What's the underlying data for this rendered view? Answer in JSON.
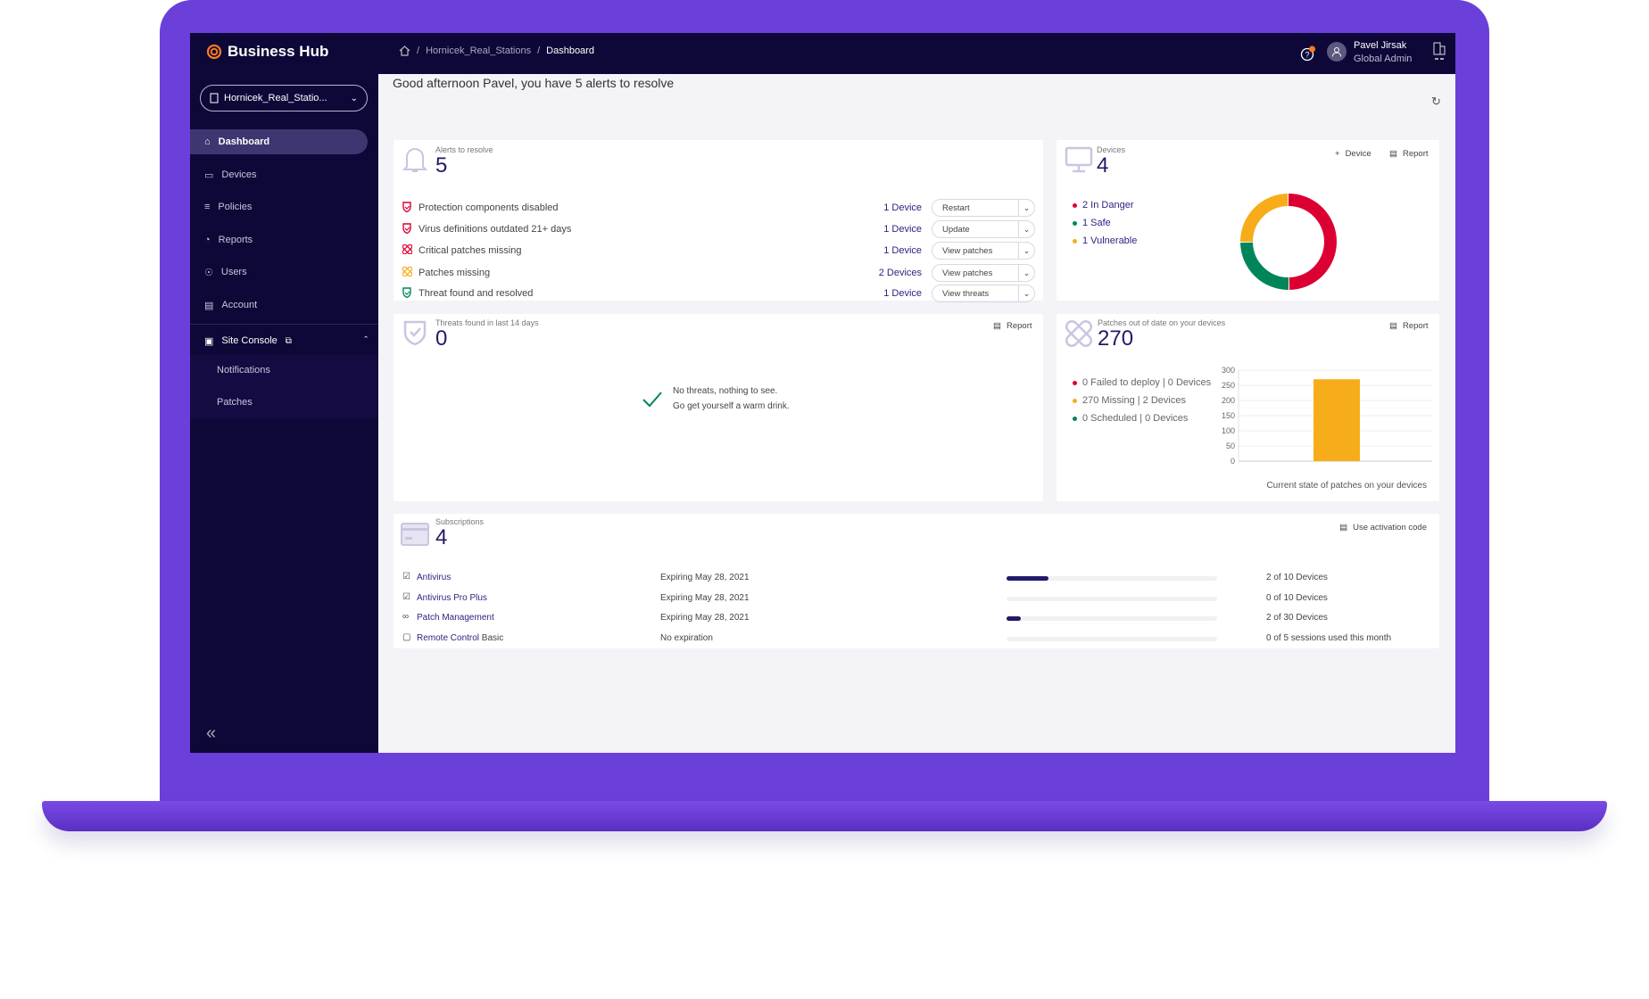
{
  "app": {
    "title": "Business Hub"
  },
  "breadcrumb": [
    "Hornicek_Real_Stations",
    "Dashboard"
  ],
  "user": {
    "name": "Pavel Jirsak",
    "role": "Global Admin"
  },
  "sidebar": {
    "site_selector": "Hornicek_Real_Statio...",
    "items": [
      {
        "label": "Dashboard",
        "icon": "home-icon"
      },
      {
        "label": "Devices",
        "icon": "monitor-icon"
      },
      {
        "label": "Policies",
        "icon": "policies-icon"
      },
      {
        "label": "Reports",
        "icon": "pie-chart-icon"
      },
      {
        "label": "Users",
        "icon": "user-circle-icon"
      },
      {
        "label": "Account",
        "icon": "account-icon"
      }
    ],
    "site_console": "Site Console",
    "sub_items": [
      "Notifications",
      "Patches"
    ]
  },
  "greeting": "Good afternoon Pavel, you have 5 alerts to resolve",
  "alerts": {
    "label": "Alerts to resolve",
    "count": "5",
    "rows": [
      {
        "text": "Protection components disabled",
        "count": "1 Device",
        "action": "Restart",
        "color": "#dc0032",
        "icon": "shield-icon"
      },
      {
        "text": "Virus definitions outdated 21+ days",
        "count": "1 Device",
        "action": "Update",
        "color": "#dc0032",
        "icon": "shield-icon"
      },
      {
        "text": "Critical patches missing",
        "count": "1 Device",
        "action": "View patches",
        "color": "#dc0032",
        "icon": "patch-icon"
      },
      {
        "text": "Patches missing",
        "count": "2 Devices",
        "action": "View patches",
        "color": "#f7ad19",
        "icon": "patch-icon"
      },
      {
        "text": "Threat found and resolved",
        "count": "1 Device",
        "action": "View threats",
        "color": "#00855a",
        "icon": "shield-icon"
      }
    ]
  },
  "devices": {
    "label": "Devices",
    "count": "4",
    "add_label": "Device",
    "report_label": "Report",
    "legend": [
      {
        "text": "2 In Danger",
        "value": 2,
        "color": "#dc0032"
      },
      {
        "text": "1 Safe",
        "value": 1,
        "color": "#00855a"
      },
      {
        "text": "1 Vulnerable",
        "value": 1,
        "color": "#f7ad19"
      }
    ]
  },
  "threats": {
    "label": "Threats found in last 14 days",
    "count": "0",
    "report_label": "Report",
    "empty_line1": "No threats, nothing to see.",
    "empty_line2": "Go get yourself a warm drink."
  },
  "patches": {
    "label": "Patches out of date on your devices",
    "count": "270",
    "report_label": "Report",
    "legend": [
      {
        "text": "0 Failed to deploy | 0 Devices",
        "color": "#dc0032"
      },
      {
        "text": "270 Missing | 2 Devices",
        "color": "#f7ad19"
      },
      {
        "text": "0 Scheduled | 0 Devices",
        "color": "#00855a"
      }
    ],
    "caption": "Current state of patches on your devices"
  },
  "chart_data": {
    "type": "bar",
    "categories": [
      "Missing"
    ],
    "values": [
      270
    ],
    "ylim": [
      0,
      300
    ],
    "yticks": [
      "0",
      "50",
      "100",
      "150",
      "200",
      "250",
      "300"
    ],
    "color": "#f7ad19",
    "grid": true
  },
  "subscriptions": {
    "label": "Subscriptions",
    "count": "4",
    "activation_label": "Use activation code",
    "rows": [
      {
        "name": "Antivirus",
        "suffix": "",
        "expiry": "Expiring May 28, 2021",
        "usage": "2 of 10 Devices",
        "fraction": 0.2
      },
      {
        "name": "Antivirus Pro Plus",
        "suffix": "",
        "expiry": "Expiring May 28, 2021",
        "usage": "0 of 10 Devices",
        "fraction": 0
      },
      {
        "name": "Patch Management",
        "suffix": "",
        "expiry": "Expiring May 28, 2021",
        "usage": "2 of 30 Devices",
        "fraction": 0.0667
      },
      {
        "name": "Remote Control",
        "suffix": " Basic",
        "expiry": "No expiration",
        "usage": "0 of 5 sessions used this month",
        "fraction": 0
      }
    ]
  },
  "colors": {
    "header": "#0e0838",
    "accent": "#2c2580",
    "danger": "#dc0032",
    "safe": "#00855a",
    "vulnerable": "#f7ad19",
    "laptop": "#6b3fd9"
  }
}
